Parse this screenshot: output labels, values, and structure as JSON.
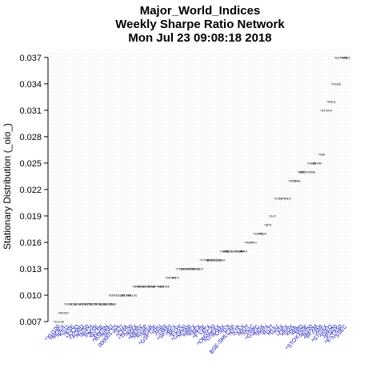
{
  "chart_data": {
    "type": "scatter",
    "title_lines": [
      "Major_World_Indices",
      "Weekly  Sharpe Ratio Network",
      "Mon Jul 23 09:08:18 2018"
    ],
    "xlabel": "",
    "ylabel": "Stationary Distribution (_oio_)",
    "ylim": [
      0.007,
      0.0378
    ],
    "yticks": [
      "0.007",
      "0.010",
      "0.013",
      "0.016",
      "0.019",
      "0.022",
      "0.025",
      "0.028",
      "0.031",
      "0.034",
      "0.037"
    ],
    "grid": true,
    "categories": [
      "^XU100",
      "^MOEX",
      "^KS11",
      "^KSE",
      "^AXJO",
      "^AORD",
      "^NZ50",
      "^N225",
      "^JKSE",
      "^KLSE",
      "^BSESN",
      "^NSEI",
      "000001.SS",
      "^STI",
      "^CMA",
      "^TA100",
      "^MXX",
      "^MERV",
      "^BVSP",
      "^IPSA",
      "^GSPTSE",
      "^HSI",
      "^TWII",
      "^SPSPI",
      "^BFX",
      "^FCHI",
      "^GDAXI",
      "^SSMI",
      "^IBEX",
      "^AEX",
      "^FTSE",
      "^ATX",
      "^OMXC20",
      "^OSEAX",
      "^OMX",
      "^DJI",
      "BSE-SMLCAP",
      "^NYA",
      "^XAX",
      "^RUT",
      "^IXIC",
      "^GSPC",
      "^NDX",
      "^SPX",
      "^DJT",
      "^DJU",
      "^VIX",
      "^OEX",
      "^SOX",
      "^SML",
      "^MID",
      "^STOXX50E",
      "^N100",
      "^BFXM",
      "^XMI",
      "^STOXX",
      "^ISEQ",
      "^PSI20",
      "^ESTX50",
      "^SSEC"
    ],
    "values": [
      0.007,
      0.008,
      0.009,
      0.009,
      0.009,
      0.009,
      0.009,
      0.009,
      0.009,
      0.009,
      0.009,
      0.009,
      0.01,
      0.01,
      0.01,
      0.01,
      0.011,
      0.011,
      0.011,
      0.011,
      0.011,
      0.011,
      0.011,
      0.012,
      0.012,
      0.013,
      0.013,
      0.013,
      0.013,
      0.013,
      0.014,
      0.014,
      0.014,
      0.014,
      0.015,
      0.015,
      0.015,
      0.015,
      0.015,
      0.016,
      0.016,
      0.017,
      0.017,
      0.018,
      0.019,
      0.021,
      0.021,
      0.021,
      0.023,
      0.023,
      0.024,
      0.024,
      0.025,
      0.025,
      0.026,
      0.031,
      0.032,
      0.034,
      0.037,
      0.037
    ]
  }
}
